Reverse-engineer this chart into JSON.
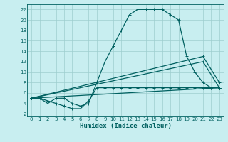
{
  "xlabel": "Humidex (Indice chaleur)",
  "bg_color": "#c8eef0",
  "grid_color": "#9dcece",
  "line_color": "#006060",
  "xlim": [
    -0.5,
    23.5
  ],
  "ylim": [
    1.5,
    23
  ],
  "xticks": [
    0,
    1,
    2,
    3,
    4,
    5,
    6,
    7,
    8,
    9,
    10,
    11,
    12,
    13,
    14,
    15,
    16,
    17,
    18,
    19,
    20,
    21,
    22,
    23
  ],
  "yticks": [
    2,
    4,
    6,
    8,
    10,
    12,
    14,
    16,
    18,
    20,
    22
  ],
  "line1_x": [
    0,
    1,
    2,
    3,
    4,
    5,
    6,
    7,
    8,
    9,
    10,
    11,
    12,
    13,
    14,
    15,
    16,
    17,
    18,
    19,
    20,
    21,
    22,
    23
  ],
  "line1_y": [
    5,
    5,
    4,
    5,
    5,
    4,
    3.5,
    4,
    8,
    12,
    15,
    18,
    21,
    22,
    22,
    22,
    22,
    21,
    20,
    13,
    10,
    8,
    7,
    7
  ],
  "line2_x": [
    0,
    1,
    2,
    3,
    4,
    5,
    6,
    7,
    8,
    9,
    10,
    11,
    12,
    13,
    14,
    15,
    16,
    17,
    18,
    19,
    20,
    21,
    22,
    23
  ],
  "line2_y": [
    5,
    5,
    4.5,
    4,
    3.5,
    3,
    3,
    4.5,
    7,
    7,
    7,
    7,
    7,
    7,
    7,
    7,
    7,
    7,
    7,
    7,
    7,
    7,
    7,
    7
  ],
  "line3_x": [
    0,
    21,
    23
  ],
  "line3_y": [
    5,
    13,
    8
  ],
  "line4_x": [
    0,
    21,
    23
  ],
  "line4_y": [
    5,
    12,
    7
  ],
  "line5_x": [
    0,
    23
  ],
  "line5_y": [
    5,
    7
  ],
  "markersize": 3,
  "linewidth": 0.9
}
